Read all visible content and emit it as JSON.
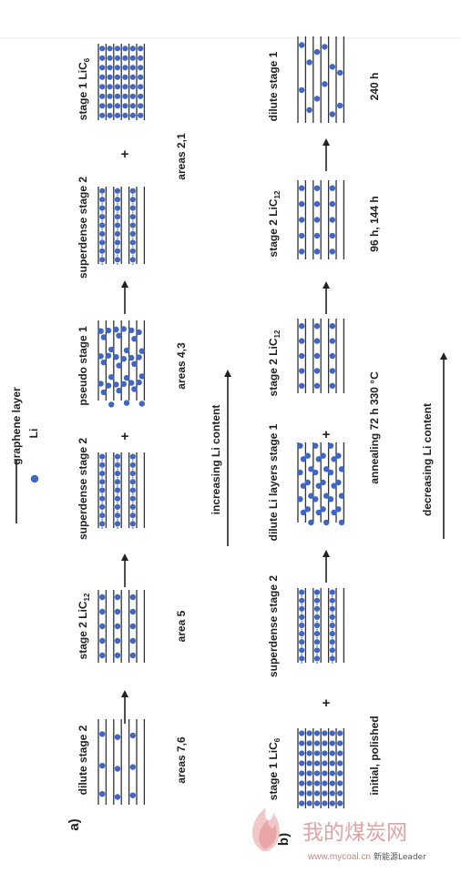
{
  "legend": {
    "graphene_label": "graphene layer",
    "li_label": "Li"
  },
  "row_a": {
    "panel_label": "a)",
    "stages": [
      {
        "name": "dilute stage 2",
        "pattern": "dilute2",
        "caption": "areas 7,6"
      },
      {
        "name": "stage 2 LiC12",
        "pattern": "stage2",
        "caption": "area 5"
      },
      {
        "name": "superdense stage 2",
        "pattern": "superdense2",
        "caption": ""
      },
      {
        "name": "pseudo stage 1",
        "pattern": "pseudo1",
        "caption": "areas 4,3"
      },
      {
        "name": "superdense stage 2",
        "pattern": "superdense2",
        "caption": ""
      },
      {
        "name": "stage 1 LiC6",
        "pattern": "stage1",
        "caption": "areas 2,1"
      }
    ],
    "direction_label": "increasing Li content"
  },
  "row_b": {
    "panel_label": "b)",
    "stages": [
      {
        "name": "stage 1 LiC6",
        "pattern": "stage1",
        "caption": "initial, polished"
      },
      {
        "name": "superdense stage 2",
        "pattern": "superdense2",
        "caption": ""
      },
      {
        "name": "dilute Li layers stage 1",
        "pattern": "dilute1",
        "caption": "annealing 72 h 330 °C"
      },
      {
        "name": "stage 2 LiC12",
        "pattern": "stage2",
        "caption": ""
      },
      {
        "name": "stage 2 LiC12",
        "pattern": "stage2",
        "caption": "96 h, 144 h"
      },
      {
        "name": "dilute stage 1",
        "pattern": "dilute1b",
        "caption": "240 h"
      }
    ],
    "direction_label": "decreasing Li content"
  },
  "operators": {
    "plus": "+"
  },
  "watermark": {
    "chinese_text": "我的煤炭网",
    "latin_text": "www.mycoal.cn",
    "small_text": "新能源Leader"
  },
  "colors": {
    "li_dot": "#3f66c4",
    "graphene_line": "#333333",
    "text": "#222222"
  }
}
